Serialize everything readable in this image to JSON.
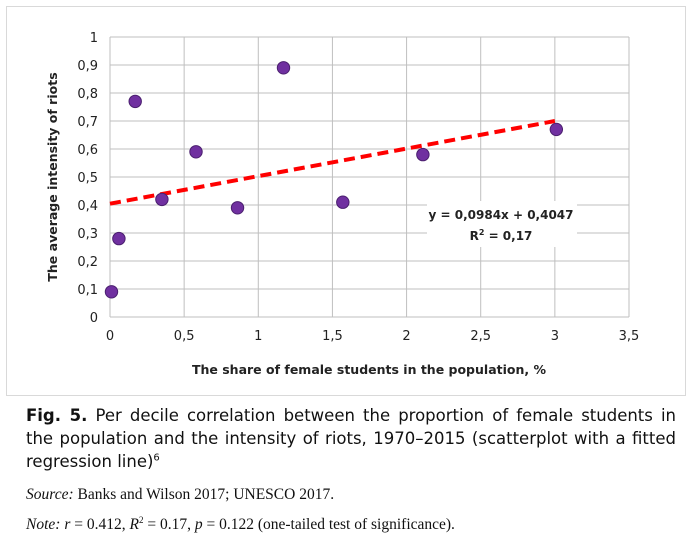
{
  "chart_data": {
    "type": "scatter",
    "xlabel": "The share of female students in the population, %",
    "ylabel": "The average intensity of riots",
    "xlim": [
      0,
      3.5
    ],
    "ylim": [
      0,
      1
    ],
    "x_ticks": [
      0,
      0.5,
      1,
      1.5,
      2,
      2.5,
      3,
      3.5
    ],
    "x_tick_labels": [
      "0",
      "0,5",
      "1",
      "1,5",
      "2",
      "2,5",
      "3",
      "3,5"
    ],
    "y_ticks": [
      0,
      0.1,
      0.2,
      0.3,
      0.4,
      0.5,
      0.6,
      0.7,
      0.8,
      0.9,
      1
    ],
    "y_tick_labels": [
      "0",
      "0,1",
      "0,2",
      "0,3",
      "0,4",
      "0,5",
      "0,6",
      "0,7",
      "0,8",
      "0,9",
      "1"
    ],
    "grid": true,
    "points": [
      {
        "x": 0.01,
        "y": 0.09
      },
      {
        "x": 0.06,
        "y": 0.28
      },
      {
        "x": 0.17,
        "y": 0.77
      },
      {
        "x": 0.35,
        "y": 0.42
      },
      {
        "x": 0.58,
        "y": 0.59
      },
      {
        "x": 0.86,
        "y": 0.39
      },
      {
        "x": 1.17,
        "y": 0.89
      },
      {
        "x": 1.57,
        "y": 0.41
      },
      {
        "x": 2.11,
        "y": 0.58
      },
      {
        "x": 3.01,
        "y": 0.67
      }
    ],
    "trendline": {
      "slope": 0.0984,
      "intercept": 0.4047,
      "x_range": [
        0,
        3
      ],
      "style": "dashed",
      "color": "#ff0000"
    },
    "point_color": "#7030a0",
    "equation_text": "y = 0,0984x + 0,4047",
    "r2_label": "R",
    "r2_sup": "2",
    "r2_value": " = 0,17"
  },
  "caption": {
    "label": "Fig. 5.",
    "text": " Per decile correlation between the proportion of female students in the population and the intensity of riots, 1970–2015 (scatterplot with a fitted regression line)",
    "footnote_mark": "6"
  },
  "source": {
    "label": "Source:",
    "text": " Banks and Wilson 2017; UNESCO 2017."
  },
  "note": {
    "label": "Note:",
    "r_sym": "r",
    "r_val": " = 0.412, ",
    "R_sym": "R",
    "R_sup": "2",
    "R_val": " = 0.17, ",
    "p_sym": "p",
    "p_val": " = 0.122 (one-tailed test of significance)."
  }
}
